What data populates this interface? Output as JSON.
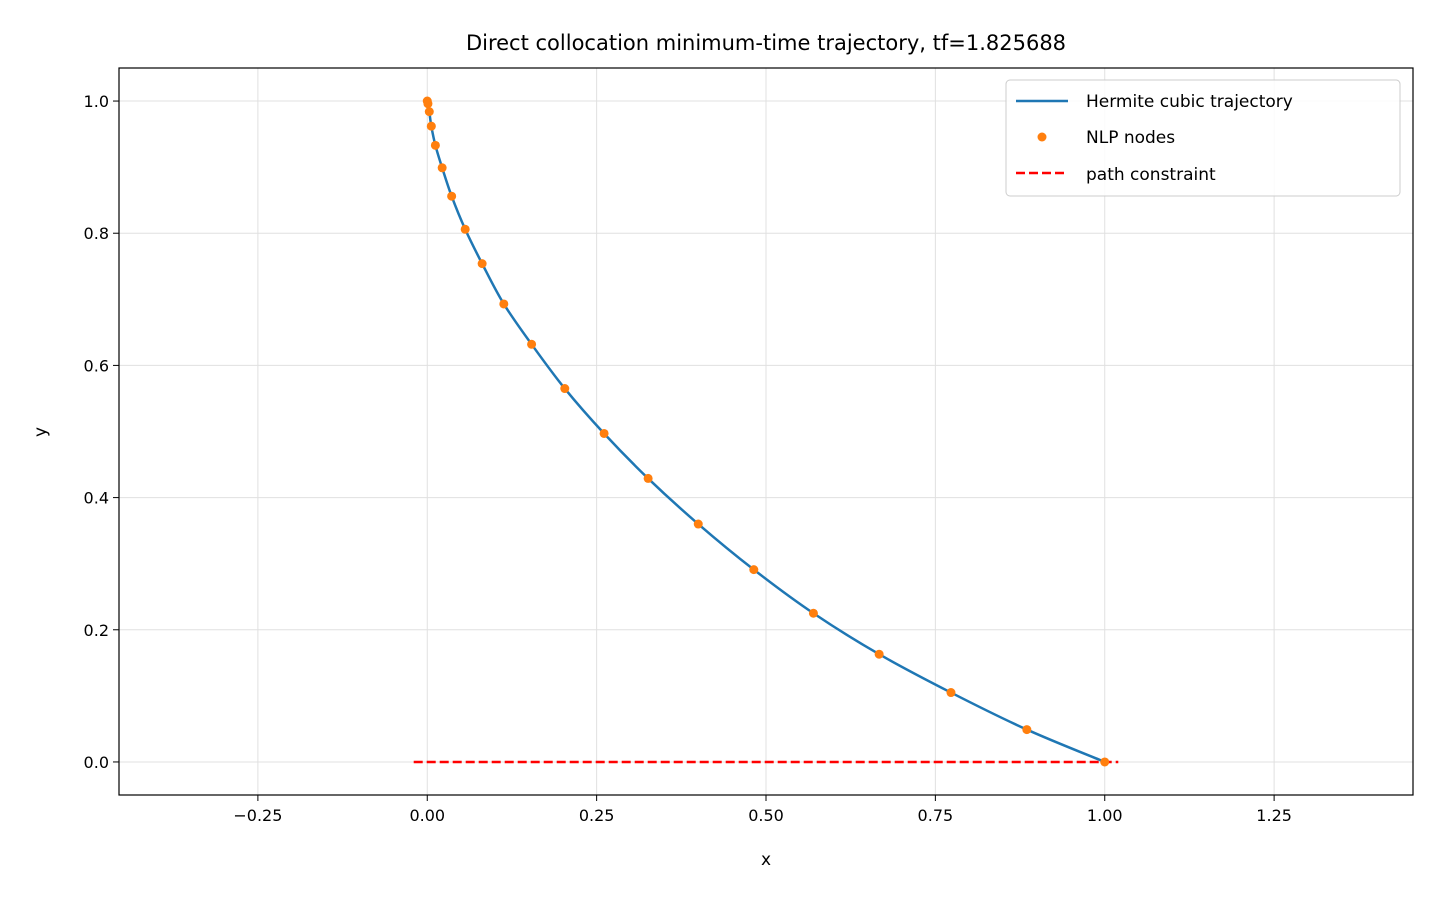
{
  "chart_data": {
    "type": "line",
    "title": "Direct collocation minimum-time trajectory, tf=1.825688",
    "xlabel": "x",
    "ylabel": "y",
    "xlim": [
      -0.455,
      1.455
    ],
    "ylim": [
      -0.05,
      1.05
    ],
    "xticks": [
      -0.25,
      0.0,
      0.25,
      0.5,
      0.75,
      1.0,
      1.25
    ],
    "xtick_labels": [
      "−0.25",
      "0.00",
      "0.25",
      "0.50",
      "0.75",
      "1.00",
      "1.25"
    ],
    "yticks": [
      0.0,
      0.2,
      0.4,
      0.6,
      0.8,
      1.0
    ],
    "ytick_labels": [
      "0.0",
      "0.2",
      "0.4",
      "0.6",
      "0.8",
      "1.0"
    ],
    "grid": true,
    "legend_position": "top-right",
    "series": [
      {
        "name": "Hermite cubic trajectory",
        "kind": "line",
        "color": "#1f77b4",
        "x": [
          0.0,
          0.001,
          0.003,
          0.006,
          0.012,
          0.022,
          0.036,
          0.056,
          0.081,
          0.113,
          0.154,
          0.203,
          0.261,
          0.326,
          0.4,
          0.482,
          0.57,
          0.667,
          0.773,
          0.885,
          1.0
        ],
        "y": [
          1.0,
          0.996,
          0.984,
          0.962,
          0.933,
          0.899,
          0.856,
          0.806,
          0.754,
          0.693,
          0.632,
          0.565,
          0.497,
          0.429,
          0.36,
          0.291,
          0.225,
          0.163,
          0.105,
          0.049,
          0.0
        ]
      },
      {
        "name": "NLP nodes",
        "kind": "markers",
        "color": "#ff7f0e",
        "x": [
          0.0,
          0.001,
          0.003,
          0.006,
          0.012,
          0.022,
          0.036,
          0.056,
          0.081,
          0.113,
          0.154,
          0.203,
          0.261,
          0.326,
          0.4,
          0.482,
          0.57,
          0.667,
          0.773,
          0.885,
          1.0
        ],
        "y": [
          1.0,
          0.996,
          0.984,
          0.962,
          0.933,
          0.899,
          0.856,
          0.806,
          0.754,
          0.693,
          0.632,
          0.565,
          0.497,
          0.429,
          0.36,
          0.291,
          0.225,
          0.163,
          0.105,
          0.049,
          0.0
        ]
      },
      {
        "name": "path constraint",
        "kind": "dashed",
        "color": "#ff0000",
        "x": [
          -0.02,
          1.02
        ],
        "y": [
          0.0,
          0.0
        ]
      }
    ]
  }
}
